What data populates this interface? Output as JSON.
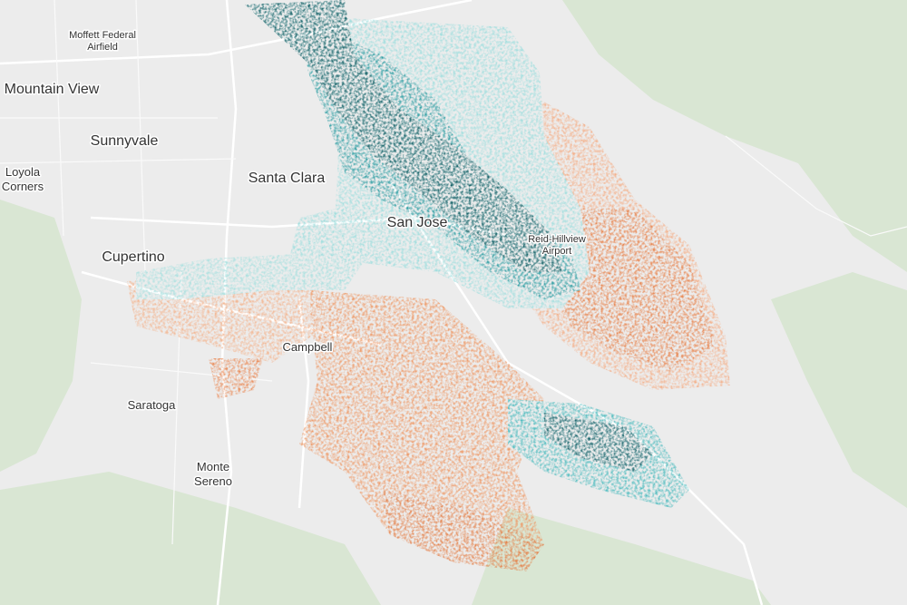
{
  "map": {
    "labels": [
      {
        "text": [
          "Moffett Federal",
          "Airfield"
        ]
      },
      {
        "text": [
          "Mountain View"
        ]
      },
      {
        "text": [
          "Sunnyvale"
        ]
      },
      {
        "text": [
          "Loyola",
          "Corners"
        ]
      },
      {
        "text": [
          "Santa Clara"
        ]
      },
      {
        "text": [
          "San Jose"
        ]
      },
      {
        "text": [
          "Reid-Hillview",
          "Airport"
        ]
      },
      {
        "text": [
          "Cupertino"
        ]
      },
      {
        "text": [
          "Campbell"
        ]
      },
      {
        "text": [
          "Saratoga"
        ]
      },
      {
        "text": [
          "Monte",
          "Sereno"
        ]
      }
    ]
  }
}
